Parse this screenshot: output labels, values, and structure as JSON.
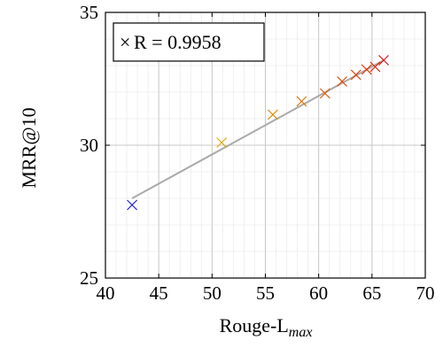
{
  "chart_data": {
    "type": "scatter",
    "xlabel": "Rouge-L",
    "xlabel_sub": "max",
    "ylabel": "MRR@10",
    "xlim": [
      40,
      70
    ],
    "ylim": [
      25,
      35
    ],
    "x_ticks": [
      40,
      45,
      50,
      55,
      60,
      65,
      70
    ],
    "y_ticks": [
      25,
      30,
      35
    ],
    "x_tick_labels": [
      "40",
      "45",
      "50",
      "55",
      "60",
      "65",
      "70"
    ],
    "y_tick_labels": [
      "25",
      "30",
      "35"
    ],
    "grid": true,
    "marker": "×",
    "points": [
      {
        "x": 42.5,
        "y": 27.75,
        "color": "#1f1fd6"
      },
      {
        "x": 50.9,
        "y": 30.1,
        "color": "#e0a800"
      },
      {
        "x": 55.7,
        "y": 31.15,
        "color": "#e08a00"
      },
      {
        "x": 58.4,
        "y": 31.65,
        "color": "#e06f00"
      },
      {
        "x": 60.6,
        "y": 31.95,
        "color": "#e05a00"
      },
      {
        "x": 62.2,
        "y": 32.4,
        "color": "#e04a00"
      },
      {
        "x": 63.5,
        "y": 32.65,
        "color": "#e03c00"
      },
      {
        "x": 64.5,
        "y": 32.85,
        "color": "#e03000"
      },
      {
        "x": 65.3,
        "y": 32.95,
        "color": "#e02000"
      },
      {
        "x": 66.1,
        "y": 33.2,
        "color": "#d91010"
      }
    ],
    "fit_line": {
      "x": [
        42.5,
        66.1
      ],
      "y": [
        28.0,
        33.2
      ],
      "color": "#aaaaaa"
    },
    "legend": {
      "text": "R = 0.9958",
      "placement": "top-left"
    }
  }
}
